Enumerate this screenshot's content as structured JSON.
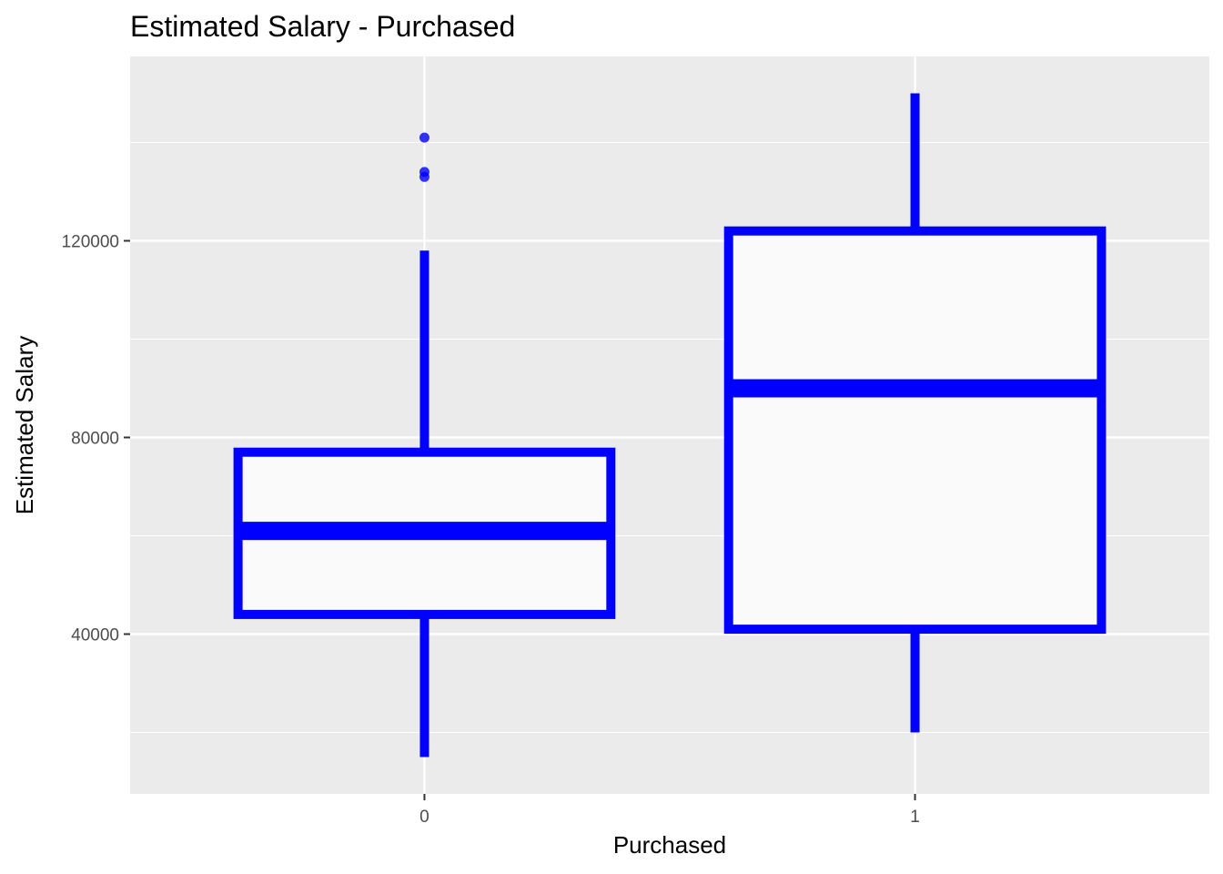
{
  "chart_data": {
    "type": "boxplot",
    "title": "Estimated Salary - Purchased",
    "xlabel": "Purchased",
    "ylabel": "Estimated Salary",
    "categories": [
      "0",
      "1"
    ],
    "ylim": [
      7500,
      157500
    ],
    "y_ticks": [
      40000,
      80000,
      120000
    ],
    "y_tick_labels": [
      "40000",
      "80000",
      "120000"
    ],
    "grid": true,
    "boxes": [
      {
        "category": "0",
        "whisker_low": 15000,
        "q1": 44000,
        "median": 61000,
        "q3": 77000,
        "whisker_high": 118000,
        "outliers": [
          133000,
          134000,
          141000
        ]
      },
      {
        "category": "1",
        "whisker_low": 20000,
        "q1": 41000,
        "median": 90000,
        "q3": 122000,
        "whisker_high": 150000,
        "outliers": []
      }
    ],
    "colors": {
      "box_line": "#0000ff",
      "box_fill": "#fafafa",
      "outlier": "#0000ff",
      "panel_bg": "#ebebeb",
      "grid": "#ffffff"
    }
  }
}
